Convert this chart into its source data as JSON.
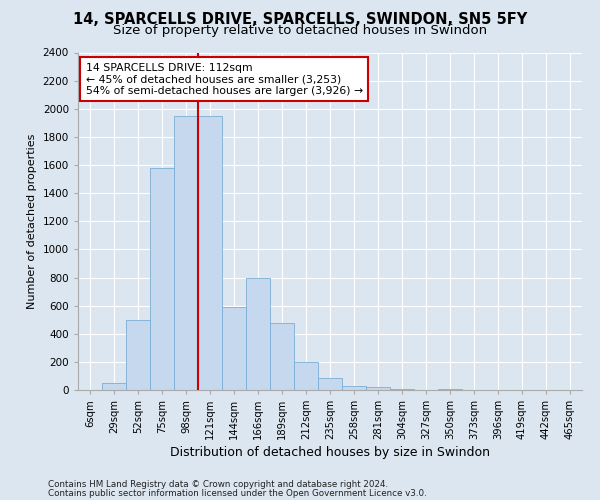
{
  "title_line1": "14, SPARCELLS DRIVE, SPARCELLS, SWINDON, SN5 5FY",
  "title_line2": "Size of property relative to detached houses in Swindon",
  "xlabel": "Distribution of detached houses by size in Swindon",
  "ylabel": "Number of detached properties",
  "footnote1": "Contains HM Land Registry data © Crown copyright and database right 2024.",
  "footnote2": "Contains public sector information licensed under the Open Government Licence v3.0.",
  "bar_labels": [
    "6sqm",
    "29sqm",
    "52sqm",
    "75sqm",
    "98sqm",
    "121sqm",
    "144sqm",
    "166sqm",
    "189sqm",
    "212sqm",
    "235sqm",
    "258sqm",
    "281sqm",
    "304sqm",
    "327sqm",
    "350sqm",
    "373sqm",
    "396sqm",
    "419sqm",
    "442sqm",
    "465sqm"
  ],
  "bar_values": [
    0,
    50,
    500,
    1580,
    1950,
    1950,
    590,
    800,
    480,
    200,
    85,
    30,
    20,
    5,
    0,
    10,
    0,
    0,
    0,
    0,
    0
  ],
  "bar_color": "#c5d8ee",
  "bar_edgecolor": "#7aadd4",
  "red_line_x": 4.5,
  "red_line_label": "14 SPARCELLS DRIVE: 112sqm",
  "annotation_line2": "← 45% of detached houses are smaller (3,253)",
  "annotation_line3": "54% of semi-detached houses are larger (3,926) →",
  "annotation_box_color": "#ffffff",
  "annotation_box_edgecolor": "#cc0000",
  "ylim": [
    0,
    2400
  ],
  "yticks": [
    0,
    200,
    400,
    600,
    800,
    1000,
    1200,
    1400,
    1600,
    1800,
    2000,
    2200,
    2400
  ],
  "background_color": "#dce6f0",
  "plot_background": "#dce6f0",
  "grid_color": "#ffffff",
  "title_fontsize": 10.5,
  "subtitle_fontsize": 9.5
}
